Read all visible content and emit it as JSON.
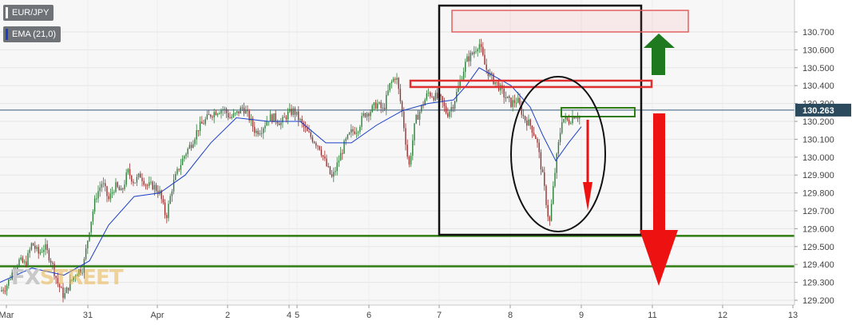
{
  "legend": {
    "symbol": "EUR/JPY",
    "indicator": "EMA (21,0)",
    "indicator_color": "#1a3ec8"
  },
  "watermark": "FXSTREET",
  "colors": {
    "up": "#2f7d3a",
    "down": "#9a3030",
    "ema": "#1a3ec8",
    "support": "#2e7d12",
    "resistance": "#e03030",
    "price_tag": "#2c4a5e",
    "arrow_red": "#ee1111",
    "arrow_green": "#1f7a1f"
  },
  "chart_data": {
    "type": "candlestick",
    "x_tick_labels": [
      "Mar",
      "31",
      "Apr",
      "2",
      "4",
      "5",
      "6",
      "7",
      "8",
      "9",
      "11",
      "12",
      "13"
    ],
    "y_tick_labels": [
      "130.700",
      "130.600",
      "130.500",
      "130.400",
      "130.300",
      "130.200",
      "130.100",
      "130.000",
      "129.900",
      "129.800",
      "129.700",
      "129.600",
      "129.500",
      "129.400",
      "129.300",
      "129.200"
    ],
    "ylim": [
      129.18,
      130.76
    ],
    "current_price": 130.263,
    "current_price_label": "130.263",
    "horizontal_levels": [
      129.56,
      129.39
    ],
    "resistance_zone": [
      130.6,
      130.69
    ],
    "resistance_band": [
      130.3,
      130.33
    ],
    "support_zone": [
      130.15,
      130.2
    ],
    "grid": true,
    "legend_position": "top-left",
    "price_path": [
      [
        0,
        129.25
      ],
      [
        8,
        129.28
      ],
      [
        16,
        129.36
      ],
      [
        24,
        129.42
      ],
      [
        32,
        129.4
      ],
      [
        40,
        129.52
      ],
      [
        48,
        129.46
      ],
      [
        56,
        129.5
      ],
      [
        64,
        129.42
      ],
      [
        72,
        129.3
      ],
      [
        80,
        129.22
      ],
      [
        88,
        129.3
      ],
      [
        96,
        129.36
      ],
      [
        104,
        129.38
      ],
      [
        112,
        129.6
      ],
      [
        120,
        129.78
      ],
      [
        128,
        129.86
      ],
      [
        136,
        129.76
      ],
      [
        144,
        129.84
      ],
      [
        152,
        129.8
      ],
      [
        160,
        129.92
      ],
      [
        168,
        129.86
      ],
      [
        176,
        129.9
      ],
      [
        184,
        129.84
      ],
      [
        192,
        129.84
      ],
      [
        200,
        129.8
      ],
      [
        208,
        129.66
      ],
      [
        216,
        129.84
      ],
      [
        224,
        129.94
      ],
      [
        232,
        130.02
      ],
      [
        240,
        130.08
      ],
      [
        248,
        130.16
      ],
      [
        256,
        130.2
      ],
      [
        264,
        130.24
      ],
      [
        272,
        130.26
      ],
      [
        280,
        130.27
      ],
      [
        288,
        130.22
      ],
      [
        296,
        130.24
      ],
      [
        304,
        130.28
      ],
      [
        312,
        130.22
      ],
      [
        320,
        130.14
      ],
      [
        328,
        130.16
      ],
      [
        336,
        130.22
      ],
      [
        344,
        130.22
      ],
      [
        352,
        130.19
      ],
      [
        360,
        130.24
      ],
      [
        368,
        130.26
      ],
      [
        376,
        130.2
      ],
      [
        384,
        130.14
      ],
      [
        392,
        130.1
      ],
      [
        400,
        130.06
      ],
      [
        408,
        129.96
      ],
      [
        416,
        129.88
      ],
      [
        424,
        129.98
      ],
      [
        432,
        130.08
      ],
      [
        440,
        130.14
      ],
      [
        448,
        130.16
      ],
      [
        456,
        130.24
      ],
      [
        464,
        130.26
      ],
      [
        472,
        130.3
      ],
      [
        480,
        130.26
      ],
      [
        488,
        130.4
      ],
      [
        496,
        130.46
      ],
      [
        504,
        130.24
      ],
      [
        512,
        129.94
      ],
      [
        520,
        130.2
      ],
      [
        528,
        130.28
      ],
      [
        536,
        130.36
      ],
      [
        544,
        130.34
      ],
      [
        552,
        130.32
      ],
      [
        560,
        130.24
      ],
      [
        568,
        130.3
      ],
      [
        576,
        130.42
      ],
      [
        584,
        130.54
      ],
      [
        592,
        130.58
      ],
      [
        600,
        130.64
      ],
      [
        608,
        130.5
      ],
      [
        616,
        130.44
      ],
      [
        624,
        130.4
      ],
      [
        632,
        130.34
      ],
      [
        640,
        130.3
      ],
      [
        648,
        130.32
      ],
      [
        656,
        130.22
      ],
      [
        664,
        130.18
      ],
      [
        672,
        130.1
      ],
      [
        680,
        129.88
      ],
      [
        688,
        129.62
      ],
      [
        696,
        129.96
      ],
      [
        704,
        130.22
      ],
      [
        712,
        130.2
      ],
      [
        720,
        130.24
      ],
      [
        728,
        130.22
      ]
    ],
    "ema_path": [
      [
        0,
        129.3
      ],
      [
        40,
        129.38
      ],
      [
        80,
        129.34
      ],
      [
        112,
        129.42
      ],
      [
        136,
        129.62
      ],
      [
        168,
        129.78
      ],
      [
        200,
        129.8
      ],
      [
        232,
        129.9
      ],
      [
        264,
        130.08
      ],
      [
        296,
        130.22
      ],
      [
        336,
        130.2
      ],
      [
        376,
        130.2
      ],
      [
        408,
        130.08
      ],
      [
        440,
        130.08
      ],
      [
        472,
        130.18
      ],
      [
        504,
        130.26
      ],
      [
        536,
        130.3
      ],
      [
        568,
        130.32
      ],
      [
        584,
        130.4
      ],
      [
        600,
        130.5
      ],
      [
        616,
        130.46
      ],
      [
        640,
        130.4
      ],
      [
        664,
        130.28
      ],
      [
        680,
        130.12
      ],
      [
        696,
        129.98
      ],
      [
        712,
        130.08
      ],
      [
        728,
        130.17
      ]
    ]
  }
}
